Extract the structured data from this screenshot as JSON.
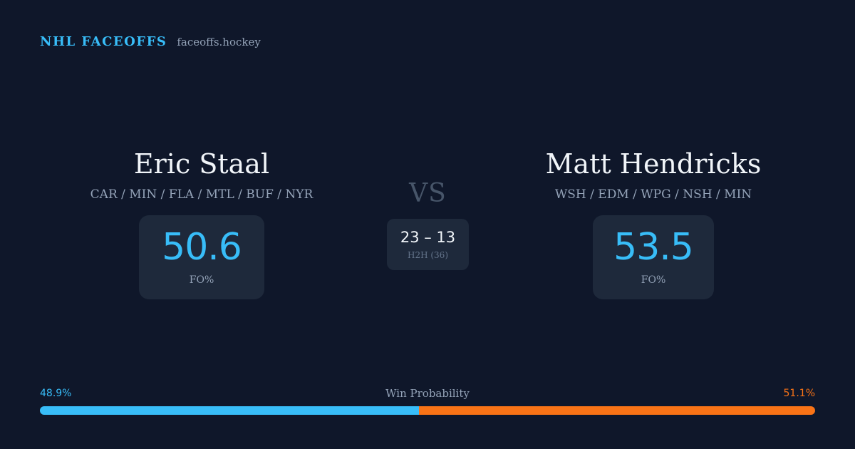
{
  "brand": {
    "name": "NHL FACEOFFS",
    "url": "faceoffs.hockey"
  },
  "players": {
    "left": {
      "name": "Eric Staal",
      "teams": "CAR / MIN / FLA / MTL / BUF / NYR",
      "stat_value": "50.6",
      "stat_label": "FO%"
    },
    "right": {
      "name": "Matt Hendricks",
      "teams": "WSH / EDM / WPG / NSH / MIN",
      "stat_value": "53.5",
      "stat_label": "FO%"
    }
  },
  "versus": {
    "label": "VS",
    "h2h_score": "23 – 13",
    "h2h_label": "H2H (36)"
  },
  "win_probability": {
    "title": "Win Probability",
    "left_label": "48.9%",
    "right_label": "51.1%",
    "left_value": 48.9,
    "right_value": 51.1,
    "left_color": "#38bdf8",
    "right_color": "#f97316"
  }
}
